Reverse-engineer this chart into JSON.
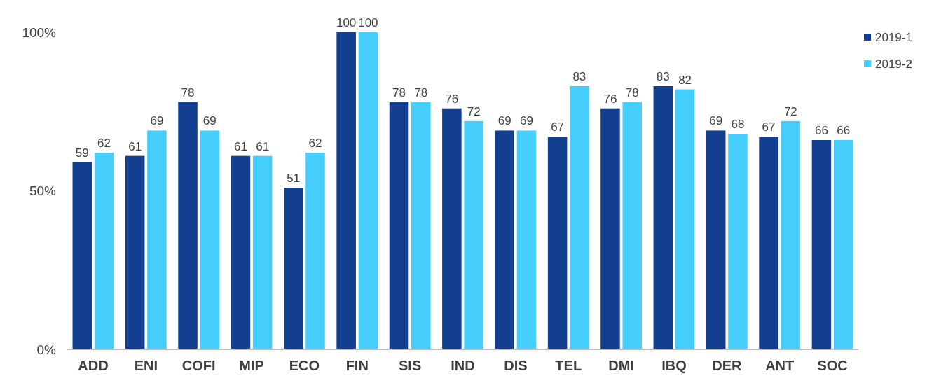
{
  "chart_data": {
    "type": "bar",
    "categories": [
      "ADD",
      "ENI",
      "COFI",
      "MIP",
      "ECO",
      "FIN",
      "SIS",
      "IND",
      "DIS",
      "TEL",
      "DMI",
      "IBQ",
      "DER",
      "ANT",
      "SOC"
    ],
    "series": [
      {
        "name": "2019-1",
        "color": "#123f8f",
        "values": [
          59,
          61,
          78,
          61,
          51,
          100,
          78,
          76,
          69,
          67,
          76,
          83,
          69,
          67,
          66
        ]
      },
      {
        "name": "2019-2",
        "color": "#45cdfc",
        "values": [
          62,
          69,
          69,
          61,
          62,
          100,
          78,
          72,
          69,
          83,
          78,
          82,
          68,
          72,
          66
        ]
      }
    ],
    "ylim": [
      0,
      100
    ],
    "yticks": [
      {
        "value": 0,
        "label": "0%"
      },
      {
        "value": 50,
        "label": "50%"
      },
      {
        "value": 100,
        "label": "100%"
      }
    ],
    "data_labels": true,
    "legend": "top right",
    "grid": false
  }
}
